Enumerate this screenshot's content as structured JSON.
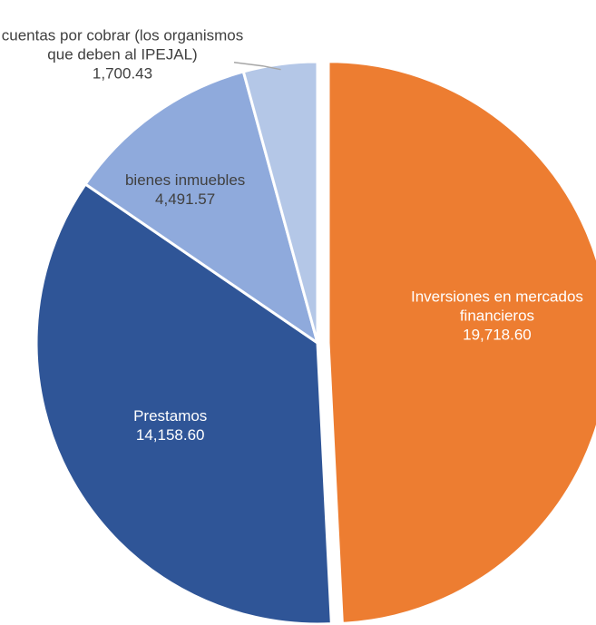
{
  "chart_data": {
    "type": "pie",
    "categories": [
      "Inversiones en mercados financieros",
      "Prestamos",
      "bienes inmuebles",
      "cuentas por cobrar (los organismos que deben al IPEJAL)"
    ],
    "values": [
      19718.6,
      14158.6,
      4491.57,
      1700.43
    ],
    "value_labels": [
      "19,718.60",
      "14,158.60",
      "4,491.57",
      "1,700.43"
    ],
    "colors": [
      "#ed7d31",
      "#2f5597",
      "#8faadc",
      "#b4c7e7"
    ]
  }
}
